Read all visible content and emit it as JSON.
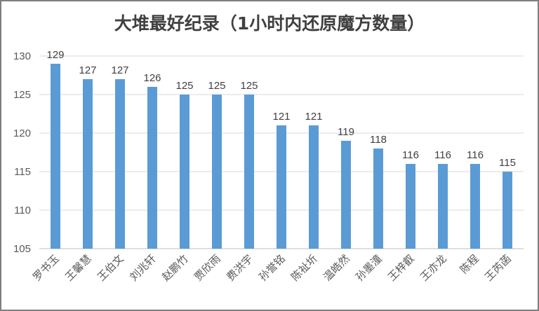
{
  "chart_data": {
    "type": "bar",
    "title": "大堆最好纪录（1小时内还原魔方数量）",
    "xlabel": "",
    "ylabel": "",
    "ylim": [
      105,
      130
    ],
    "yticks": [
      105,
      110,
      115,
      120,
      125,
      130
    ],
    "grid": true,
    "legend": "none",
    "bar_color": "#5B9BD5",
    "categories": [
      "罗书玉",
      "王馨慧",
      "王伯文",
      "刘兆轩",
      "赵鹏竹",
      "贾欣雨",
      "费洪宇",
      "孙誉铭",
      "陈祉圻",
      "温皓然",
      "孙墨潼",
      "王梓叡",
      "王亦龙",
      "陈程",
      "王芮菡"
    ],
    "values": [
      129,
      127,
      127,
      126,
      125,
      125,
      125,
      121,
      121,
      119,
      118,
      116,
      116,
      116,
      115
    ]
  }
}
